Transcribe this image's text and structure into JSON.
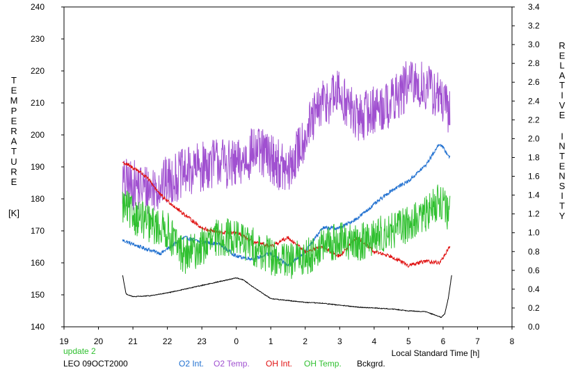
{
  "chart_data": {
    "type": "line",
    "left_axis_label_letters": [
      "T",
      "E",
      "M",
      "P",
      "E",
      "R",
      "A",
      "T",
      "U",
      "R",
      "E"
    ],
    "left_axis_unit": "[K]",
    "right_axis_label_words": [
      [
        "R",
        "E",
        "L",
        "A",
        "T",
        "I",
        "V",
        "E"
      ],
      [
        "I",
        "N",
        "T",
        "E",
        "N",
        "S",
        "I",
        "T",
        "Y"
      ]
    ],
    "xlabel": "Local Standard Time [h]",
    "x_ticks": [
      "19",
      "20",
      "21",
      "22",
      "23",
      "0",
      "1",
      "2",
      "3",
      "4",
      "5",
      "6",
      "7",
      "8"
    ],
    "x_range": [
      19,
      32
    ],
    "y_left_ticks": [
      "140",
      "150",
      "160",
      "170",
      "180",
      "190",
      "200",
      "210",
      "220",
      "230",
      "240"
    ],
    "y_left_range": [
      140,
      240
    ],
    "y_right_ticks": [
      "0.0",
      "0.2",
      "0.4",
      "0.6",
      "0.8",
      "1.0",
      "1.2",
      "1.4",
      "1.6",
      "1.8",
      "2.0",
      "2.2",
      "2.4",
      "2.6",
      "2.8",
      "3.0",
      "3.2",
      "3.4"
    ],
    "y_right_range": [
      0,
      3.4
    ],
    "grid": false,
    "footer_left": [
      "update 2",
      "LEO 09OCT2000"
    ],
    "series": [
      {
        "name": "O2 Int.",
        "color": "#2070d0",
        "axis": "right",
        "noise": 0.02,
        "x": [
          20.7,
          21.2,
          21.8,
          22.5,
          23.0,
          23.5,
          24.0,
          24.5,
          25.0,
          25.5,
          26.0,
          26.5,
          27.0,
          27.5,
          28.0,
          28.5,
          29.0,
          29.5,
          29.9,
          30.1,
          30.2
        ],
        "values": [
          0.92,
          0.85,
          0.78,
          0.95,
          0.9,
          0.88,
          0.75,
          0.72,
          0.78,
          0.65,
          0.8,
          1.05,
          1.05,
          1.15,
          1.3,
          1.45,
          1.55,
          1.72,
          1.95,
          1.85,
          1.8
        ]
      },
      {
        "name": "O2 Temp.",
        "color": "#a050d0",
        "axis": "left",
        "noise": 8,
        "x": [
          20.7,
          21.5,
          22.5,
          23.5,
          24.0,
          24.5,
          25.0,
          25.5,
          26.0,
          26.5,
          27.0,
          27.5,
          28.0,
          28.5,
          29.0,
          29.5,
          29.9,
          30.2
        ],
        "values": [
          185,
          183,
          188,
          192,
          190,
          195,
          193,
          188,
          200,
          210,
          213,
          205,
          208,
          210,
          216,
          215,
          212,
          206
        ]
      },
      {
        "name": "OH Int.",
        "color": "#e01010",
        "axis": "right",
        "noise": 0.02,
        "x": [
          20.7,
          21.2,
          21.5,
          21.8,
          22.3,
          23.0,
          23.5,
          24.0,
          24.5,
          25.0,
          25.5,
          26.0,
          26.5,
          27.0,
          27.5,
          28.0,
          28.5,
          29.0,
          29.5,
          29.9,
          30.2
        ],
        "values": [
          1.75,
          1.65,
          1.55,
          1.4,
          1.25,
          1.05,
          1.0,
          1.0,
          0.9,
          0.85,
          0.95,
          0.8,
          0.85,
          0.75,
          0.95,
          0.8,
          0.75,
          0.65,
          0.7,
          0.68,
          0.85
        ]
      },
      {
        "name": "OH Temp.",
        "color": "#30c030",
        "axis": "left",
        "noise": 6,
        "x": [
          20.7,
          21.0,
          21.5,
          22.0,
          22.5,
          23.0,
          23.5,
          24.0,
          24.5,
          25.0,
          25.5,
          26.0,
          26.5,
          27.0,
          27.5,
          28.0,
          28.5,
          29.0,
          29.5,
          29.9,
          30.2
        ],
        "values": [
          178,
          175,
          172,
          170,
          162,
          165,
          168,
          168,
          165,
          162,
          160,
          162,
          165,
          167,
          166,
          168,
          170,
          172,
          175,
          180,
          175
        ]
      },
      {
        "name": "Bckgrd.",
        "color": "#000000",
        "axis": "right",
        "noise": 0.004,
        "x": [
          20.7,
          20.8,
          21.0,
          21.5,
          22.0,
          22.5,
          23.0,
          23.5,
          24.0,
          24.2,
          24.5,
          25.0,
          25.5,
          26.0,
          26.5,
          27.0,
          27.5,
          28.0,
          28.5,
          29.0,
          29.5,
          29.8,
          29.95,
          30.05,
          30.15,
          30.25
        ],
        "values": [
          0.55,
          0.35,
          0.32,
          0.33,
          0.36,
          0.4,
          0.44,
          0.48,
          0.52,
          0.5,
          0.42,
          0.3,
          0.28,
          0.26,
          0.25,
          0.23,
          0.21,
          0.2,
          0.19,
          0.17,
          0.16,
          0.12,
          0.1,
          0.14,
          0.3,
          0.55
        ]
      }
    ]
  }
}
